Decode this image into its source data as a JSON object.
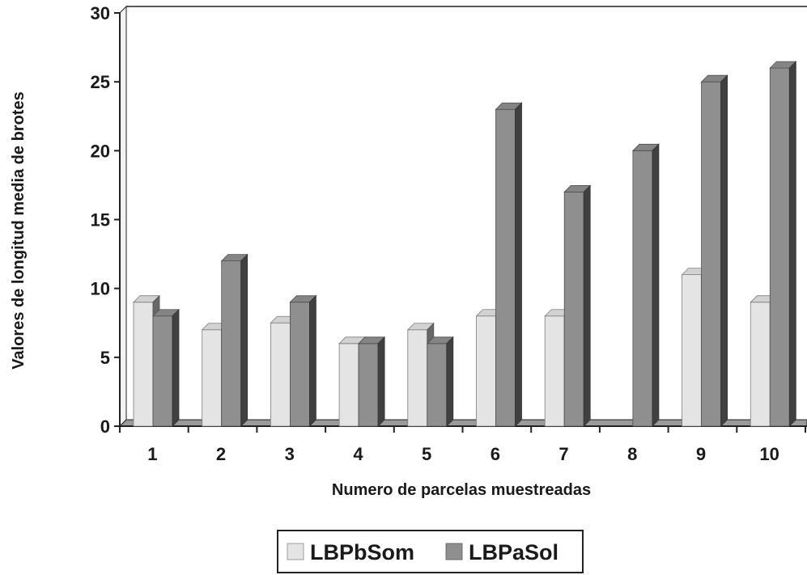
{
  "chart_data": {
    "type": "bar",
    "title": "",
    "xlabel": "Numero de parcelas muestreadas",
    "ylabel": "Valores de longitud media de brotes",
    "categories": [
      "1",
      "2",
      "3",
      "4",
      "5",
      "6",
      "7",
      "8",
      "9",
      "10"
    ],
    "series": [
      {
        "name": "LBPbSom",
        "color": "#e4e4e4",
        "values": [
          9,
          7,
          7.5,
          6,
          7,
          8,
          8,
          0,
          11,
          9
        ]
      },
      {
        "name": "LBPaSol",
        "color": "#8f8f8f",
        "values": [
          8,
          12,
          9,
          6,
          6,
          23,
          17,
          20,
          25,
          26
        ]
      }
    ],
    "ylim": [
      0,
      30
    ],
    "yticks": [
      "0",
      "5",
      "10",
      "15",
      "20",
      "25",
      "30"
    ],
    "grid": false,
    "style": "3d-bars",
    "legend_position": "bottom-center"
  }
}
